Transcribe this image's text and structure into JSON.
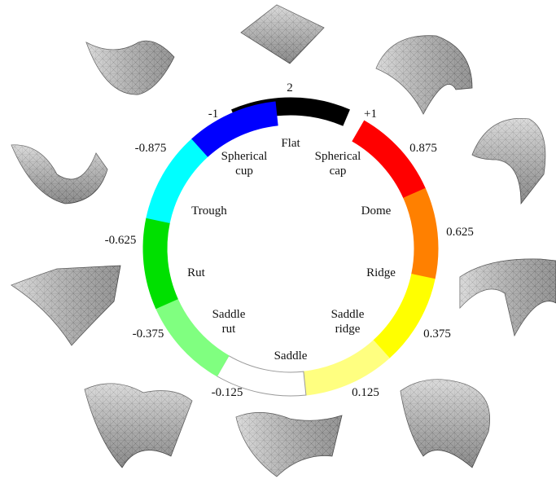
{
  "segments": [
    {
      "label": [
        "Flat"
      ],
      "value": "2",
      "color": "#000000"
    },
    {
      "label": [
        "Spherical",
        "cap"
      ],
      "value": "+1",
      "color": "#ff0000"
    },
    {
      "label": [
        "Dome"
      ],
      "value": "0.875",
      "color": "#ff8000"
    },
    {
      "label": [
        "Ridge"
      ],
      "value": "0.625",
      "color": "#ffff00"
    },
    {
      "label": [
        "Saddle",
        "ridge"
      ],
      "value": "0.375",
      "color": "#ffff80"
    },
    {
      "label": [
        "Saddle"
      ],
      "value": "0.125",
      "color": "#ffffff"
    },
    {
      "label": [
        "Saddle",
        "rut"
      ],
      "value": "-0.125",
      "color": "#80ff80"
    },
    {
      "label": [
        "Rut"
      ],
      "value": "-0.375",
      "color": "#00e000"
    },
    {
      "label": [
        "Trough"
      ],
      "value": "-0.625",
      "color": "#00ffff"
    },
    {
      "label": [
        "Spherical",
        "cup"
      ],
      "value": "-0.875",
      "color": "#0000ff"
    },
    {
      "label": [],
      "value": "-1",
      "color": ""
    }
  ],
  "surfaces": [
    {
      "name": "flat-surface"
    },
    {
      "name": "spherical-cap-surface"
    },
    {
      "name": "dome-surface"
    },
    {
      "name": "ridge-surface"
    },
    {
      "name": "saddle-ridge-surface"
    },
    {
      "name": "saddle-surface"
    },
    {
      "name": "saddle-rut-surface"
    },
    {
      "name": "rut-surface"
    },
    {
      "name": "trough-surface"
    },
    {
      "name": "spherical-cup-surface"
    }
  ]
}
